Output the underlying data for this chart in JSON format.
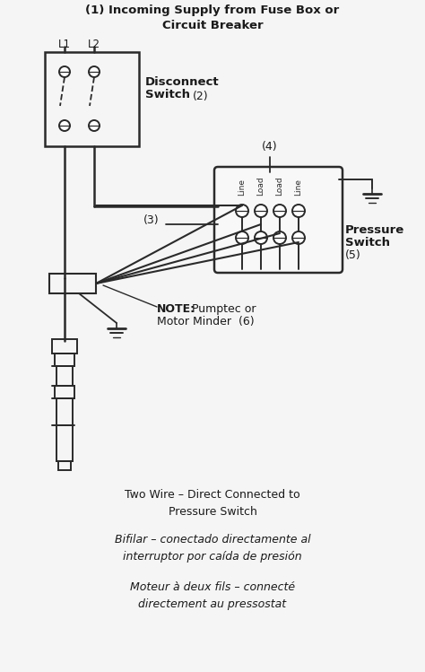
{
  "title": "(1) Incoming Supply from Fuse Box or\nCircuit Breaker",
  "bg_color": "#f5f5f5",
  "line_color": "#2a2a2a",
  "text_color": "#1a1a1a",
  "title_fontsize": 9.5,
  "label_fontsize": 9,
  "small_fontsize": 7.5,
  "annotation_fontsize": 8.5,
  "bottom_text1": "Two Wire – Direct Connected to\nPressure Switch",
  "bottom_text2": "Bifilar – conectado directamente al\ninterruptor por caída de presión",
  "bottom_text3": "Moteur à deux fils – connecté\ndirectement au pressostat"
}
